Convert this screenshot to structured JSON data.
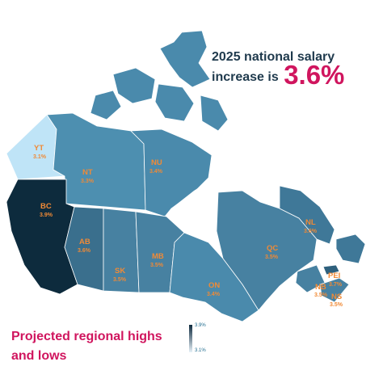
{
  "headline": {
    "line1": "2025 national salary",
    "line2": "increase is",
    "value": "3.6%"
  },
  "footer": {
    "line1": "Projected regional highs",
    "line2": "and lows"
  },
  "legend": {
    "max": "3.9%",
    "min": "3.1%",
    "color_high": "#0e2a3e",
    "color_low": "#e6f1f8"
  },
  "regions": [
    {
      "code": "YT",
      "value": "3.1%",
      "fill": "#bfe4f7"
    },
    {
      "code": "NT",
      "value": "3.3%",
      "fill": "#4d8fb0"
    },
    {
      "code": "NU",
      "value": "3.4%",
      "fill": "#4a8aac"
    },
    {
      "code": "BC",
      "value": "3.9%",
      "fill": "#0d2b3d"
    },
    {
      "code": "AB",
      "value": "3.6%",
      "fill": "#3a6f8d"
    },
    {
      "code": "SK",
      "value": "3.5%",
      "fill": "#4781a1"
    },
    {
      "code": "MB",
      "value": "3.5%",
      "fill": "#4781a1"
    },
    {
      "code": "ON",
      "value": "3.4%",
      "fill": "#4a8aac"
    },
    {
      "code": "QC",
      "value": "3.5%",
      "fill": "#4781a1"
    },
    {
      "code": "NL",
      "value": "3.6%",
      "fill": "#3f7898"
    },
    {
      "code": "PEI",
      "value": "3.7%",
      "fill": "#2e607d"
    },
    {
      "code": "NB",
      "value": "3.5%",
      "fill": "#4781a1"
    },
    {
      "code": "NS",
      "value": "3.5%",
      "fill": "#4781a1"
    }
  ]
}
